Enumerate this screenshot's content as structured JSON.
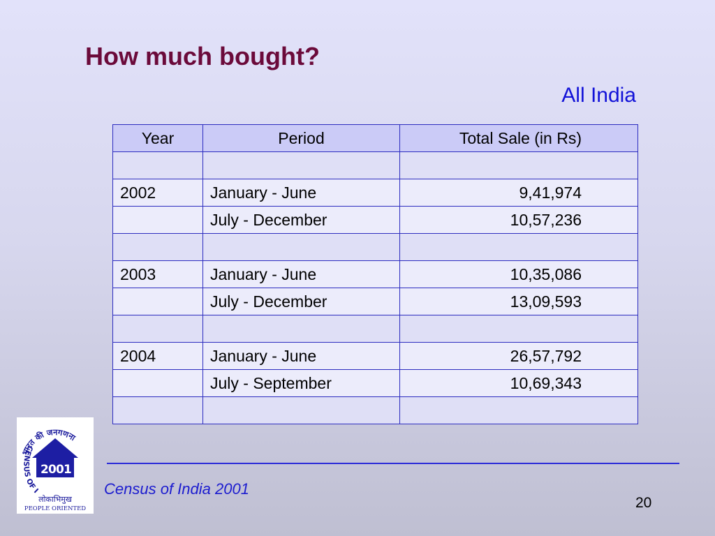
{
  "slide": {
    "title": "How much bought?",
    "subtitle": "All India",
    "footer": "Census of India 2001",
    "page_number": "20"
  },
  "table": {
    "headers": [
      "Year",
      "Period",
      "Total Sale (in Rs)"
    ],
    "rows": [
      [
        "",
        "",
        ""
      ],
      [
        "2002",
        "January -  June",
        "9,41,974"
      ],
      [
        "",
        "July - December",
        "10,57,236"
      ],
      [
        "",
        "",
        ""
      ],
      [
        "2003",
        "January -  June",
        "10,35,086"
      ],
      [
        "",
        "July - December",
        "13,09,593"
      ],
      [
        "",
        "",
        ""
      ],
      [
        "2004",
        "January -  June",
        "26,57,792"
      ],
      [
        "",
        "July - September",
        "10,69,343"
      ],
      [
        "",
        "",
        ""
      ]
    ]
  },
  "logo": {
    "arc_text": "भारत की जनगणना",
    "name": "CENSUS OF INDIA",
    "motto_hindi": "लोकाभिमुख",
    "motto": "PEOPLE ORIENTED",
    "year_digits": [
      "2",
      "0",
      "0",
      "1"
    ]
  },
  "colors": {
    "title": "#6b0a3a",
    "subtitle": "#1212d8",
    "table_border": "#2c2cbf",
    "footer": "#1c1ccf"
  }
}
